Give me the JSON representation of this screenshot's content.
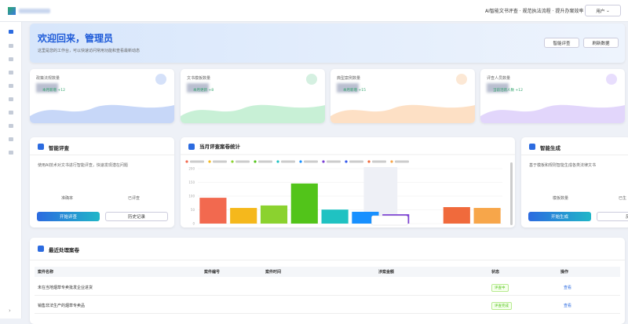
{
  "topbar": {
    "slogan": "AI智能文书评查 · 规范执法流程 · 提升办案效率",
    "user": "用户"
  },
  "banner": {
    "title": "欢迎回来，管理员",
    "subtitle": "这里是您的工作台，可以快速访问常用功能和查看最新动态",
    "buttons": [
      "智能评查",
      "刷新数据"
    ]
  },
  "stats": [
    {
      "title": "政策法规数量",
      "trend": "本月新增 +12"
    },
    {
      "title": "文书模板数量",
      "trend": "本月更新 +8"
    },
    {
      "title": "典型案例数量",
      "trend": "本月新增 +15"
    },
    {
      "title": "评查人员数量",
      "trend": "当前活跃人数 +12"
    }
  ],
  "review_card": {
    "title": "智能评查",
    "desc": "使用AI技术对文书进行智能评查，快速发现潜在问题",
    "metrics": [
      "准确率",
      "已评查"
    ],
    "buttons": [
      "开始评查",
      "历史记录"
    ]
  },
  "generate_card": {
    "title": "智能生成",
    "desc": "基于模板和规则智能生成各类法律文书",
    "metrics": [
      "模板数量",
      "已生"
    ],
    "buttons": [
      "开始生成",
      "历"
    ]
  },
  "chart_data": {
    "type": "bar",
    "title": "当月评查案卷统计",
    "categories": [
      null,
      null,
      null,
      null,
      null,
      null,
      null,
      null,
      null,
      null
    ],
    "values": [
      94,
      57,
      66,
      146,
      51,
      43,
      34,
      0,
      60,
      57
    ],
    "colors": [
      "#f2694f",
      "#f5b81c",
      "#8bd22f",
      "#52c41a",
      "#1fc2c2",
      "#1890ff",
      "#7b3fd4",
      "#2f54eb",
      "#f06a3c",
      "#f7a64a"
    ],
    "ylim": [
      0,
      200
    ],
    "yticks": [
      0,
      50,
      100,
      150,
      200
    ],
    "grid": true
  },
  "table": {
    "title": "最近处理案卷",
    "headers": [
      "案件名称",
      "案件编号",
      "案件时间",
      "涉案金额",
      "状态",
      "操作"
    ],
    "rows": [
      [
        "未在当地烟草专卖批发企业进货",
        "评查中",
        "查看"
      ],
      [
        "销售非法生产的烟草专卖品",
        "评查完成",
        "查看"
      ]
    ]
  }
}
